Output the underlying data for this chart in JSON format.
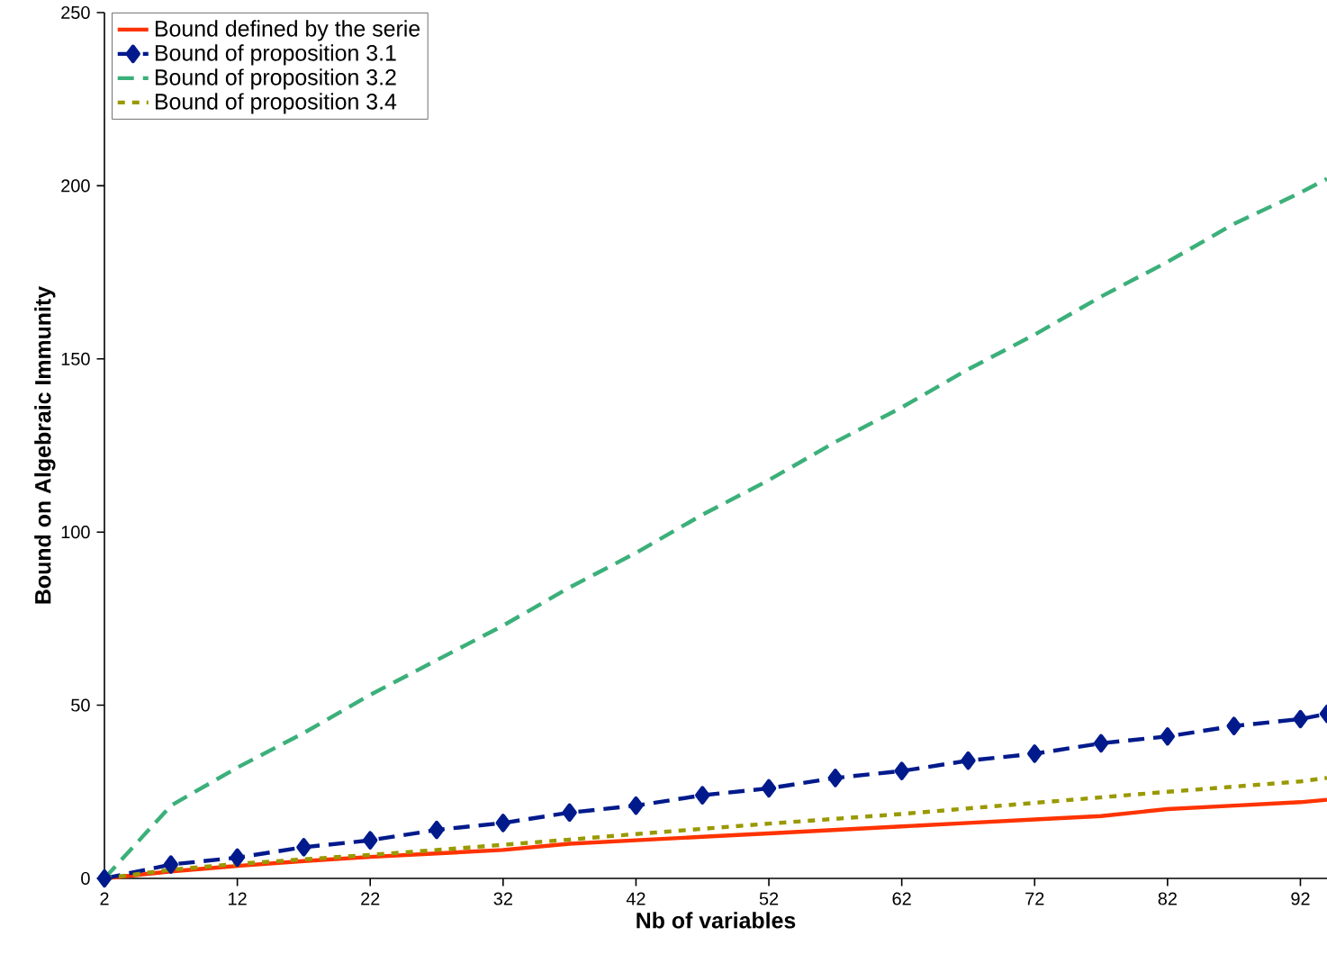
{
  "chart_data": {
    "type": "line",
    "xlabel": "Nb of variables",
    "ylabel": "Bound on Algebraic Immunity",
    "x": [
      2,
      7,
      12,
      17,
      22,
      27,
      32,
      37,
      42,
      47,
      52,
      57,
      62,
      67,
      72,
      77,
      82,
      87,
      92,
      94
    ],
    "series": [
      {
        "name": "Bound defined by the serie",
        "color": "#ff3300",
        "line_style": "solid",
        "marker": "none",
        "values": [
          0,
          2,
          3.6,
          5,
          6.2,
          7.2,
          8.2,
          10,
          11,
          12,
          13,
          14,
          15,
          16,
          17,
          18,
          20,
          21,
          22,
          22.7
        ]
      },
      {
        "name": "Bound of proposition 3.1",
        "color": "#001a8c",
        "line_style": "dashed",
        "marker": "diamond",
        "values": [
          0,
          4,
          6,
          9,
          11,
          14,
          16,
          19,
          21,
          24,
          26,
          29,
          31,
          34,
          36,
          39,
          41,
          44,
          46,
          47.5
        ]
      },
      {
        "name": "Bound of proposition 3.2",
        "color": "#3cb07a",
        "line_style": "dashed",
        "marker": "none",
        "values": [
          0,
          21,
          32,
          42,
          53,
          63,
          73,
          84,
          94,
          105,
          115,
          126,
          136,
          147,
          157,
          168,
          178,
          189,
          198,
          202
        ]
      },
      {
        "name": "Bound of proposition 3.4",
        "color": "#999900",
        "line_style": "dotted",
        "marker": "none",
        "values": [
          0,
          2.5,
          4.2,
          5.5,
          6.8,
          8.2,
          9.7,
          11.2,
          12.8,
          14.3,
          15.8,
          17.2,
          18.6,
          20.2,
          21.8,
          23.4,
          25,
          26.5,
          28,
          29
        ]
      }
    ],
    "xlim": [
      2,
      94
    ],
    "ylim": [
      0,
      250
    ],
    "xticks": [
      2,
      12,
      22,
      32,
      42,
      52,
      62,
      72,
      82,
      92
    ],
    "yticks": [
      0,
      50,
      100,
      150,
      200,
      250
    ],
    "grid": false,
    "legend": "top left"
  }
}
